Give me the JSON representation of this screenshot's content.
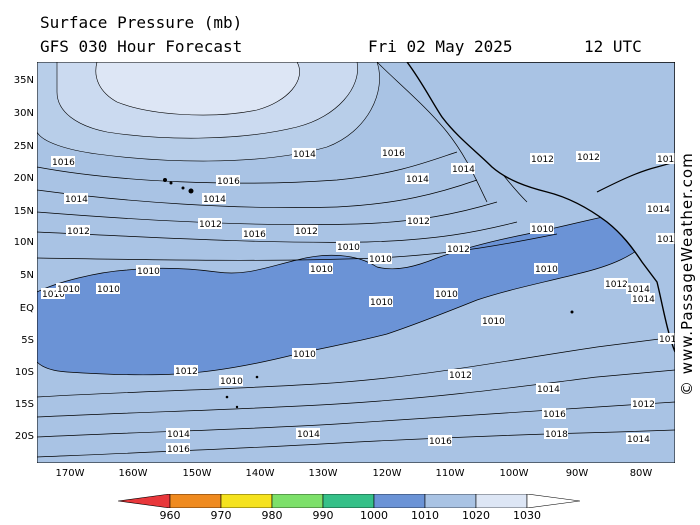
{
  "header": {
    "title": "Surface Pressure (mb)",
    "model": "GFS 030 Hour Forecast",
    "date": "Fri 02 May 2025",
    "time": "12 UTC"
  },
  "credit": "© www.PassageWeather.com",
  "lat_labels": [
    "35N",
    "30N",
    "25N",
    "20N",
    "15N",
    "10N",
    "5N",
    "EQ",
    "5S",
    "10S",
    "15S",
    "20S"
  ],
  "lon_labels": [
    "170W",
    "160W",
    "150W",
    "140W",
    "130W",
    "120W",
    "110W",
    "100W",
    "90W",
    "80W"
  ],
  "colorbar": {
    "labels": [
      "960",
      "970",
      "980",
      "990",
      "1000",
      "1010",
      "1020",
      "1030"
    ],
    "colors": [
      "#e8373b",
      "#ef8a1f",
      "#f5e21e",
      "#7de06a",
      "#35c088",
      "#6b93d6",
      "#a9c3e4",
      "#dde6f5"
    ]
  },
  "pressure_labels": [
    "1016",
    "1014",
    "1012",
    "1010",
    "1010",
    "1010",
    "1010",
    "1012",
    "1014",
    "1016",
    "1016",
    "1014",
    "1012",
    "1010",
    "1010",
    "1010",
    "1012",
    "1014",
    "1016",
    "1014",
    "1012",
    "1010",
    "1010",
    "1012",
    "1014",
    "1016",
    "1010",
    "1010",
    "1012",
    "1014",
    "1016",
    "1018",
    "1014",
    "1012",
    "1010",
    "1010",
    "1012",
    "1014",
    "1016",
    "1018",
    "1012",
    "1014",
    "1016",
    "1010",
    "1012",
    "1014",
    "1016",
    "1014"
  ],
  "colors": {
    "ocean_light": "#a9c3e4",
    "ocean_low": "#6b93d6",
    "high": "#dde6f5",
    "land": "#a9c3e4"
  }
}
